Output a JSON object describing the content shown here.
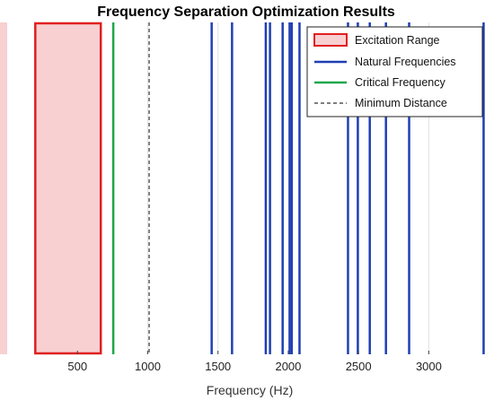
{
  "chart_data": {
    "type": "line",
    "title": "Frequency Separation Optimization Results",
    "xlabel": "Frequency (Hz)",
    "ylabel": "",
    "xlim": [
      0,
      3400
    ],
    "xticks": [
      500,
      1000,
      1500,
      2000,
      2500,
      3000
    ],
    "grid": true,
    "legend_position": "top-right",
    "excitation_range": {
      "name": "Excitation Range",
      "x": [
        200,
        666
      ],
      "fill_color": "#f8d0d2",
      "edge_color": "#e02020"
    },
    "natural_frequencies": {
      "name": "Natural Frequencies",
      "color": "#1f3fb4",
      "x": [
        1455,
        1600,
        1840,
        1870,
        1960,
        2010,
        2025,
        2080,
        2425,
        2495,
        2580,
        2695,
        2860,
        3390
      ]
    },
    "critical_frequency": {
      "name": "Critical Frequency",
      "color": "#1aa84a",
      "x": [
        755
      ]
    },
    "minimum_distance": {
      "name": "Minimum Distance",
      "color": "#333333",
      "style": "dashed",
      "x": [
        1010
      ]
    },
    "outside_shade_color": "#f8d0d2"
  }
}
